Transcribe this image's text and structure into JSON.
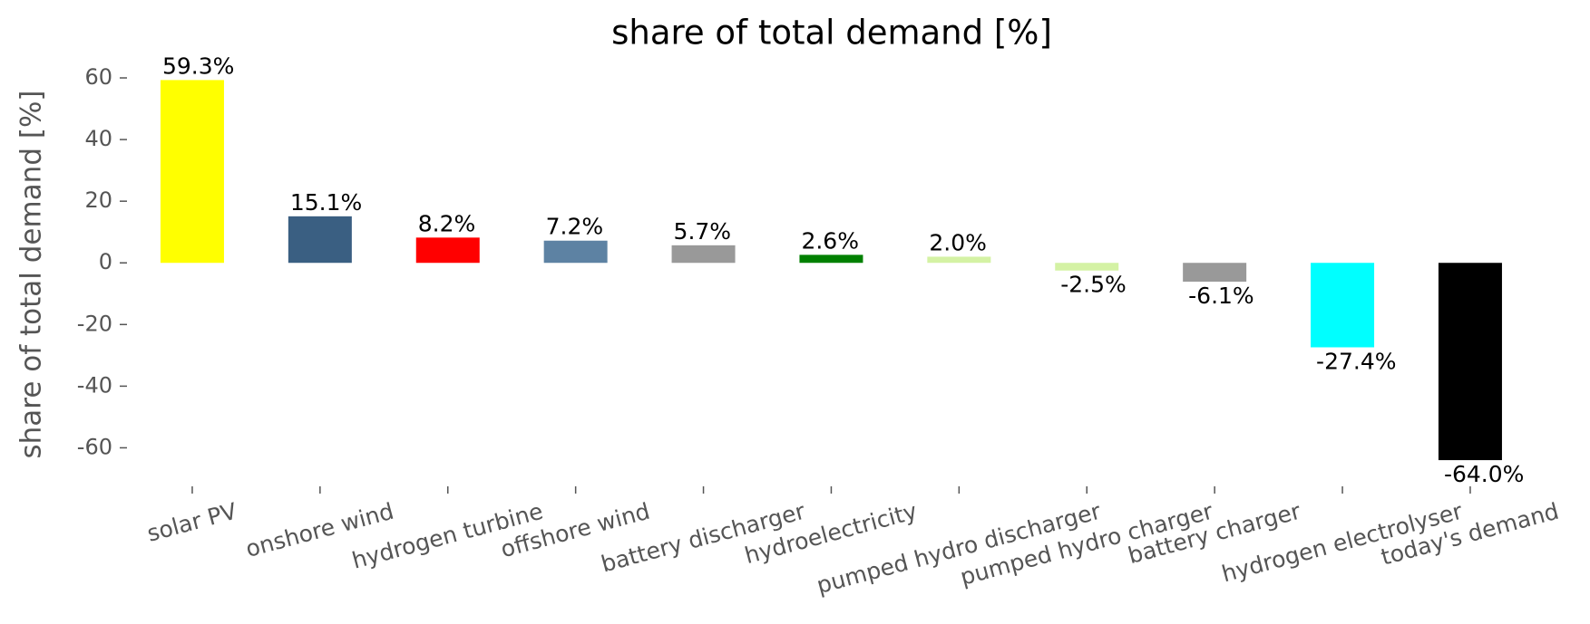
{
  "chart_data": {
    "type": "bar",
    "title": "share of total demand [%]",
    "y_label": "share of total demand [%]",
    "categories": [
      "solar PV",
      "onshore wind",
      "hydrogen turbine",
      "offshore wind",
      "battery discharger",
      "hydroelectricity",
      "pumped hydro discharger",
      "pumped hydro charger",
      "battery charger",
      "hydrogen electrolyser",
      "today's demand"
    ],
    "values": [
      59.3,
      15.1,
      8.2,
      7.2,
      5.7,
      2.6,
      2.0,
      -2.5,
      -6.1,
      -27.4,
      -64.0
    ],
    "value_labels": [
      "59.3%",
      "15.1%",
      "8.2%",
      "7.2%",
      "5.7%",
      "2.6%",
      "2.0%",
      "-2.5%",
      "-6.1%",
      "-27.4%",
      "-64.0%"
    ],
    "colors": [
      "#ffff00",
      "#3a5f82",
      "#ff0000",
      "#5d82a3",
      "#999999",
      "#008000",
      "#d4f2a4",
      "#d4f2a4",
      "#999999",
      "#00ffff",
      "#000000"
    ],
    "ylim": [
      -72.5,
      65
    ],
    "yticks": [
      -60,
      -40,
      -20,
      0,
      20,
      40,
      60
    ]
  }
}
